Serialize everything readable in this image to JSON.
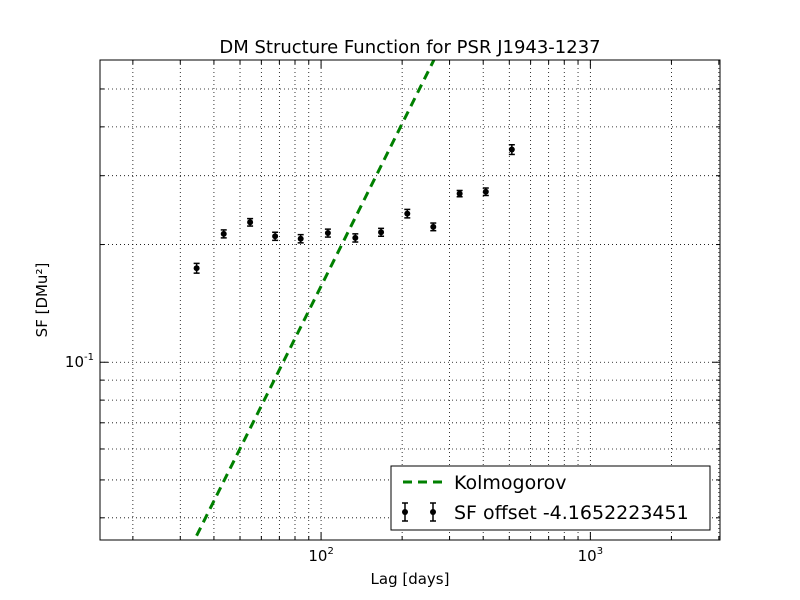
{
  "chart_data": {
    "type": "scatter",
    "title": "DM Structure Function for PSR J1943-1237",
    "xlabel": "Lag [days]",
    "ylabel": "SF [DMu²]",
    "xscale": "log",
    "yscale": "log",
    "xlim": [
      15.1,
      3030
    ],
    "ylim": [
      0.0351,
      0.593
    ],
    "grid": true,
    "legend_position": "lower-right",
    "x_ticks": [
      {
        "value": 100,
        "base": "10",
        "exp": "2"
      },
      {
        "value": 1000,
        "base": "10",
        "exp": "3"
      }
    ],
    "y_ticks": [
      {
        "value": 0.1,
        "base": "10",
        "exp": "-1"
      }
    ],
    "series": [
      {
        "name": "Kolmogorov",
        "kind": "line",
        "style": "dashed",
        "color": "#008000",
        "x": [
          34.5,
          262.5
        ],
        "y": [
          0.036,
          0.593
        ]
      },
      {
        "name": "SF offset -4.1652223451",
        "kind": "errorbar",
        "color": "#000000",
        "x": [
          34.5,
          43.5,
          54.5,
          67.5,
          84,
          106,
          134,
          167,
          209,
          261,
          327,
          409,
          511
        ],
        "y": [
          0.174,
          0.213,
          0.228,
          0.21,
          0.207,
          0.214,
          0.208,
          0.215,
          0.24,
          0.222,
          0.27,
          0.273,
          0.35
        ],
        "yerr": [
          0.005,
          0.005,
          0.005,
          0.005,
          0.005,
          0.005,
          0.005,
          0.005,
          0.006,
          0.005,
          0.005,
          0.006,
          0.01
        ]
      }
    ]
  }
}
